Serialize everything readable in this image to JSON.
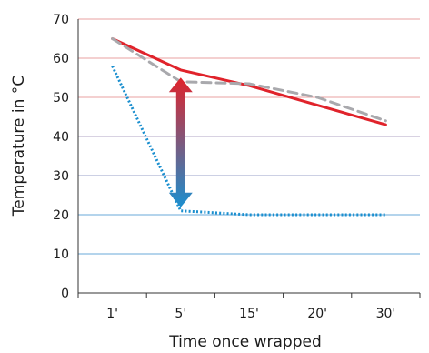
{
  "chart_data": {
    "type": "line",
    "xlabel": "Time once wrapped",
    "ylabel": "Temperature in °C",
    "categories": [
      "1'",
      "5'",
      "15'",
      "20'",
      "30'"
    ],
    "ylim": [
      0,
      70
    ],
    "yticks": [
      0,
      10,
      20,
      30,
      40,
      50,
      60,
      70
    ],
    "grid": true,
    "grid_colors": {
      "70": "#e8a0a0",
      "60": "#e8a0a0",
      "50": "#e8a0a0",
      "40": "#b0a4c4",
      "30": "#9aa2c8",
      "20": "#6aa9d8",
      "10": "#6aa9d8"
    },
    "x": [
      1,
      5,
      15,
      20,
      30
    ],
    "series": [
      {
        "style": "solid",
        "color": "#e0232b",
        "points": [
          [
            1,
            65
          ],
          [
            5,
            57
          ],
          [
            15,
            53
          ],
          [
            30,
            43
          ]
        ]
      },
      {
        "style": "dashed",
        "color": "#a9a9ad",
        "points": [
          [
            1,
            65
          ],
          [
            5,
            54
          ],
          [
            15,
            53.5
          ],
          [
            20,
            50
          ],
          [
            30,
            44
          ]
        ]
      },
      {
        "style": "dotted",
        "color": "#1b8fcf",
        "points": [
          [
            1,
            58
          ],
          [
            5,
            21
          ],
          [
            15,
            20
          ],
          [
            30,
            20
          ]
        ]
      }
    ],
    "annotation": {
      "type": "double-arrow",
      "x": 5,
      "y_top": 56,
      "y_bottom": 21,
      "color_top": "#e0232b",
      "color_bottom": "#1b8fcf"
    }
  }
}
